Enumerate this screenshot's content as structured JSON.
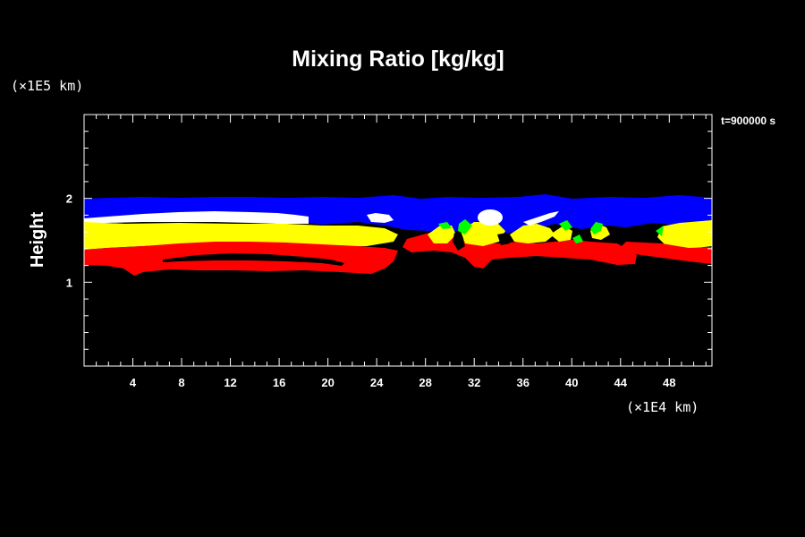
{
  "chart_data": {
    "type": "heatmap",
    "title": "Mixing Ratio [kg/kg]",
    "ylabel": "Height",
    "xlabel": "",
    "x_unit": "(×1E4 km)",
    "y_unit": "(×1E5 km)",
    "time_label": "t=900000 s",
    "xlim": [
      0,
      51.5
    ],
    "ylim": [
      0,
      3
    ],
    "x_ticks": [
      "4",
      "8",
      "12",
      "16",
      "20",
      "24",
      "28",
      "32",
      "36",
      "40",
      "44",
      "48"
    ],
    "y_ticks": [
      "1",
      "2"
    ],
    "background_color": "#000000",
    "frame_color": "#ffffff",
    "bands": [
      {
        "color": "#0000ff",
        "x": [
          0,
          51.5
        ],
        "y": [
          1.73,
          1.98
        ]
      },
      {
        "color": "#ffffff",
        "x": [
          0,
          17.5
        ],
        "y": [
          1.72,
          1.8
        ]
      },
      {
        "color": "#ffff00",
        "x": [
          0,
          25.5
        ],
        "y": [
          1.47,
          1.73
        ]
      },
      {
        "color": "#ff0000",
        "x": [
          0,
          25
        ],
        "y": [
          1.12,
          1.46
        ]
      },
      {
        "color": "#ffff00",
        "x": [
          47,
          51.5
        ],
        "y": [
          1.45,
          1.7
        ]
      },
      {
        "color": "#ff0000",
        "x": [
          47,
          51.5
        ],
        "y": [
          1.24,
          1.45
        ]
      }
    ],
    "plumes": [
      {
        "color": "#ff0000",
        "x": 28,
        "y": 1.45
      },
      {
        "color": "#00ff00",
        "x": 30,
        "y": 1.65
      },
      {
        "color": "#ffff00",
        "x": 31.5,
        "y": 1.6
      },
      {
        "color": "#ffffff",
        "x": 33,
        "y": 1.78
      },
      {
        "color": "#ffff00",
        "x": 35.5,
        "y": 1.6
      },
      {
        "color": "#ffffff",
        "x": 37.5,
        "y": 1.76
      },
      {
        "color": "#ffff00",
        "x": 38.5,
        "y": 1.58
      },
      {
        "color": "#00ff00",
        "x": 42,
        "y": 1.6
      },
      {
        "color": "#ff0000",
        "x": 43.5,
        "y": 1.35
      }
    ]
  }
}
